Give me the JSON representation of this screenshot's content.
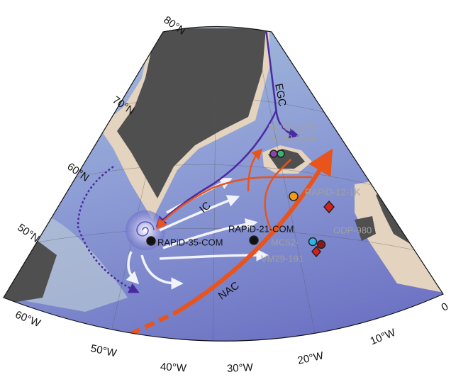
{
  "map": {
    "lat_labels": [
      "80°N",
      "70°N",
      "60°N",
      "50°N"
    ],
    "lon_labels": [
      "60°W",
      "50°W",
      "40°W",
      "30°W",
      "20°W",
      "10°W",
      "0"
    ],
    "currents": [
      "EGC",
      "IC",
      "NAC"
    ],
    "sites": [
      "MD99-2275",
      "MD99-2269",
      "RAPiD-12-1K",
      "RAPiD-21-COM",
      "RAPiD-35-COM",
      "ODP-980",
      "MC52-",
      "VM29-191"
    ]
  }
}
